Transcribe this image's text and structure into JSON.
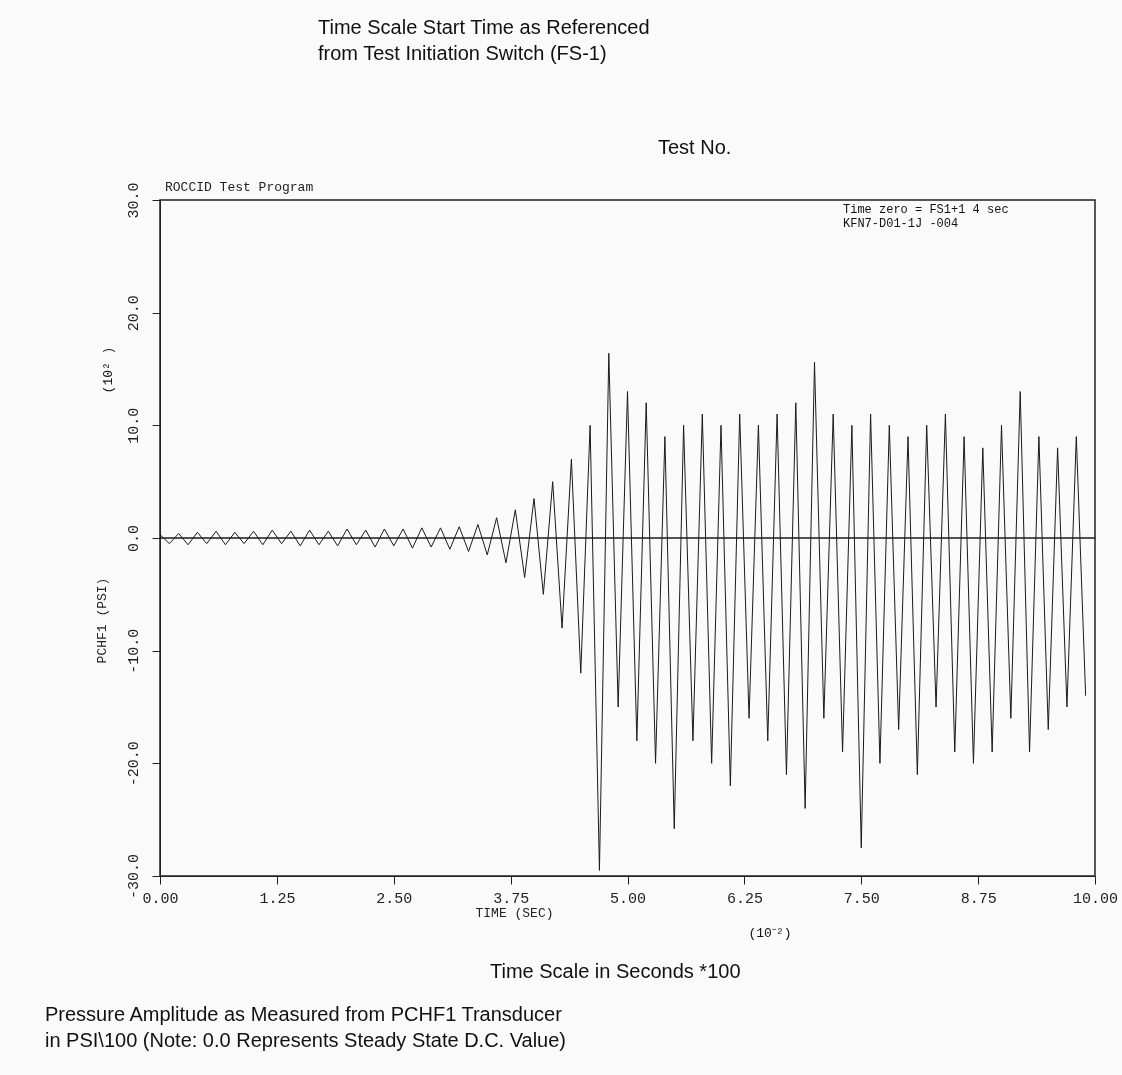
{
  "chart_data": {
    "type": "line",
    "title": "ROCCID Test Program",
    "xlabel": "TIME (SEC)",
    "ylabel": "PCHF1  (PSI)",
    "annotations": [
      "(10² )",
      "(10⁻²)",
      "Time zero = FS1+1 4 sec",
      "KFN7-D01-1J -004",
      "Time Scale Start Time as Referenced\nfrom Test Initiation Switch (FS-1)",
      "Test No.",
      "Time Scale in Seconds *100",
      "Pressure Amplitude as Measured from PCHF1 Transducer\nin PSI\\100 (Note: 0.0 Represents Steady State D.C. Value)"
    ],
    "x": [
      0.0,
      0.1,
      0.2,
      0.3,
      0.4,
      0.5,
      0.6,
      0.7,
      0.8,
      0.9,
      1.0,
      1.1,
      1.2,
      1.3,
      1.4,
      1.5,
      1.6,
      1.7,
      1.8,
      1.9,
      2.0,
      2.1,
      2.2,
      2.3,
      2.4,
      2.5,
      2.6,
      2.7,
      2.8,
      2.9,
      3.0,
      3.1,
      3.2,
      3.3,
      3.4,
      3.5,
      3.6,
      3.7,
      3.8,
      3.9,
      4.0,
      4.1,
      4.2,
      4.3,
      4.4,
      4.5,
      4.6,
      4.7,
      4.8,
      4.9,
      5.0,
      5.1,
      5.2,
      5.3,
      5.4,
      5.5,
      5.6,
      5.7,
      5.8,
      5.9,
      6.0,
      6.1,
      6.2,
      6.3,
      6.4,
      6.5,
      6.6,
      6.7,
      6.8,
      6.9,
      7.0,
      7.1,
      7.2,
      7.3,
      7.4,
      7.5,
      7.6,
      7.7,
      7.8,
      7.9,
      8.0,
      8.1,
      8.2,
      8.3,
      8.4,
      8.5,
      8.6,
      8.7,
      8.8,
      8.9,
      9.0,
      9.1,
      9.2,
      9.3,
      9.4,
      9.5,
      9.6,
      9.7,
      9.8,
      9.9
    ],
    "series": [
      {
        "color": "#1a1a1a",
        "values": [
          0.3,
          -0.5,
          0.4,
          -0.6,
          0.5,
          -0.5,
          0.6,
          -0.6,
          0.5,
          -0.5,
          0.6,
          -0.6,
          0.7,
          -0.5,
          0.6,
          -0.7,
          0.7,
          -0.6,
          0.6,
          -0.7,
          0.8,
          -0.6,
          0.7,
          -0.8,
          0.8,
          -0.7,
          0.8,
          -0.9,
          0.9,
          -0.8,
          0.9,
          -1.0,
          1.0,
          -1.2,
          1.2,
          -1.5,
          1.8,
          -2.2,
          2.5,
          -3.5,
          3.5,
          -5,
          5,
          -8,
          7,
          -12,
          10,
          -29.5,
          16.4,
          -15,
          13,
          -18,
          12,
          -20,
          9,
          -25.8,
          10,
          -18,
          11,
          -20,
          10,
          -22,
          11,
          -16,
          10,
          -18,
          11,
          -21,
          12,
          -24,
          15.6,
          -16,
          11,
          -19,
          10,
          -27.5,
          11,
          -20,
          10,
          -17,
          9,
          -21,
          10,
          -15,
          11,
          -19,
          9,
          -20,
          8,
          -19,
          10,
          -16,
          13,
          -19,
          9,
          -17,
          8,
          -15,
          9,
          -14
        ]
      }
    ],
    "xlim": [
      0,
      10
    ],
    "ylim": [
      -30,
      30
    ],
    "xticks": [
      {
        "value": 0,
        "label": "0.00"
      },
      1.25,
      {
        "value": 2.5,
        "label": "2.50"
      },
      3.75,
      {
        "value": 5,
        "label": "5.00"
      },
      6.25,
      {
        "value": 7.5,
        "label": "7.50"
      },
      8.75,
      {
        "value": 10,
        "label": "10.00"
      }
    ],
    "yticks": [
      {
        "value": -30,
        "label": "-30.0"
      },
      {
        "value": -20,
        "label": "-20.0"
      },
      {
        "value": -10,
        "label": "-10.0"
      },
      {
        "value": 0,
        "label": "0.0"
      },
      {
        "value": 10,
        "label": "10.0"
      },
      {
        "value": 20,
        "label": "20.0"
      },
      {
        "value": 30,
        "label": "30.0"
      }
    ],
    "ref_lines": [
      {
        "axis": "y",
        "value": 0,
        "color": "#1a1a1a"
      }
    ],
    "grid": false,
    "line_style": "solid"
  }
}
